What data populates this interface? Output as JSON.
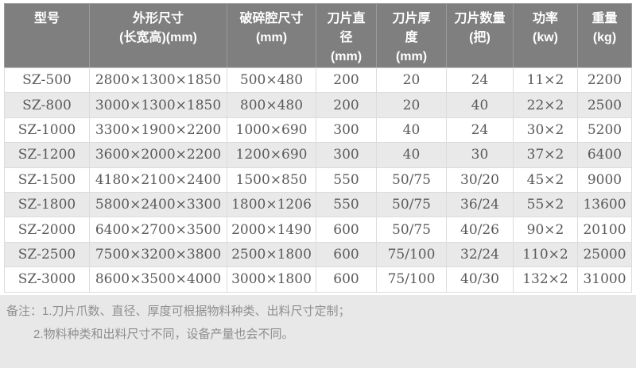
{
  "table": {
    "columns": [
      {
        "id": "model",
        "lines": [
          "型号"
        ]
      },
      {
        "id": "dimensions",
        "lines": [
          "外形尺寸",
          "(长宽高)(mm)"
        ]
      },
      {
        "id": "chamber-size",
        "lines": [
          "破碎腔尺寸",
          "(mm)"
        ]
      },
      {
        "id": "blade-diameter",
        "lines": [
          "刀片直",
          "径",
          "(mm)"
        ]
      },
      {
        "id": "blade-thickness",
        "lines": [
          "刀片厚",
          "度",
          "(mm)"
        ]
      },
      {
        "id": "blade-count",
        "lines": [
          "刀片数量",
          "(把)"
        ]
      },
      {
        "id": "power",
        "lines": [
          "功率",
          "(kw)"
        ]
      },
      {
        "id": "weight",
        "lines": [
          "重量",
          "(kg)"
        ]
      }
    ],
    "rows": [
      [
        "SZ-500",
        "2800×1300×1850",
        "500×480",
        "200",
        "20",
        "24",
        "11×2",
        "2200"
      ],
      [
        "SZ-800",
        "3000×1300×1850",
        "800×480",
        "200",
        "20",
        "40",
        "22×2",
        "2500"
      ],
      [
        "SZ-1000",
        "3300×1900×2200",
        "1000×690",
        "300",
        "40",
        "24",
        "30×2",
        "5200"
      ],
      [
        "SZ-1200",
        "3600×2000×2200",
        "1200×690",
        "300",
        "40",
        "30",
        "37×2",
        "6400"
      ],
      [
        "SZ-1500",
        "4180×2100×2400",
        "1500×850",
        "550",
        "50/75",
        "30/20",
        "45×2",
        "9000"
      ],
      [
        "SZ-1800",
        "5800×2400×3300",
        "1800×1206",
        "550",
        "50/75",
        "36/24",
        "55×2",
        "13600"
      ],
      [
        "SZ-2000",
        "6400×2700×3500",
        "2000×1490",
        "600",
        "50/75",
        "40/26",
        "90×2",
        "20100"
      ],
      [
        "SZ-2500",
        "7500×3200×3800",
        "2500×1800",
        "600",
        "75/100",
        "32/24",
        "110×2",
        "25000"
      ],
      [
        "SZ-3000",
        "8600×3500×4000",
        "3000×1800",
        "600",
        "75/100",
        "40/30",
        "132×2",
        "31000"
      ]
    ]
  },
  "notes": {
    "label": "备注：",
    "items": [
      "1.刀片爪数、直径、厚度可根据物料种类、出料尺寸定制；",
      "2.物料种类和出料尺寸不同，设备产量也会不同。"
    ]
  },
  "colors": {
    "header_bg": "#7f7f7f",
    "header_text": "#ffffff",
    "row_bg": "#ffffff",
    "row_alt_bg": "#e9e9e9",
    "cell_text": "#5a5a5a",
    "grid_line": "#dcdcdc",
    "notes_bg": "#e8e8e8",
    "notes_text": "#8e8e8e"
  }
}
